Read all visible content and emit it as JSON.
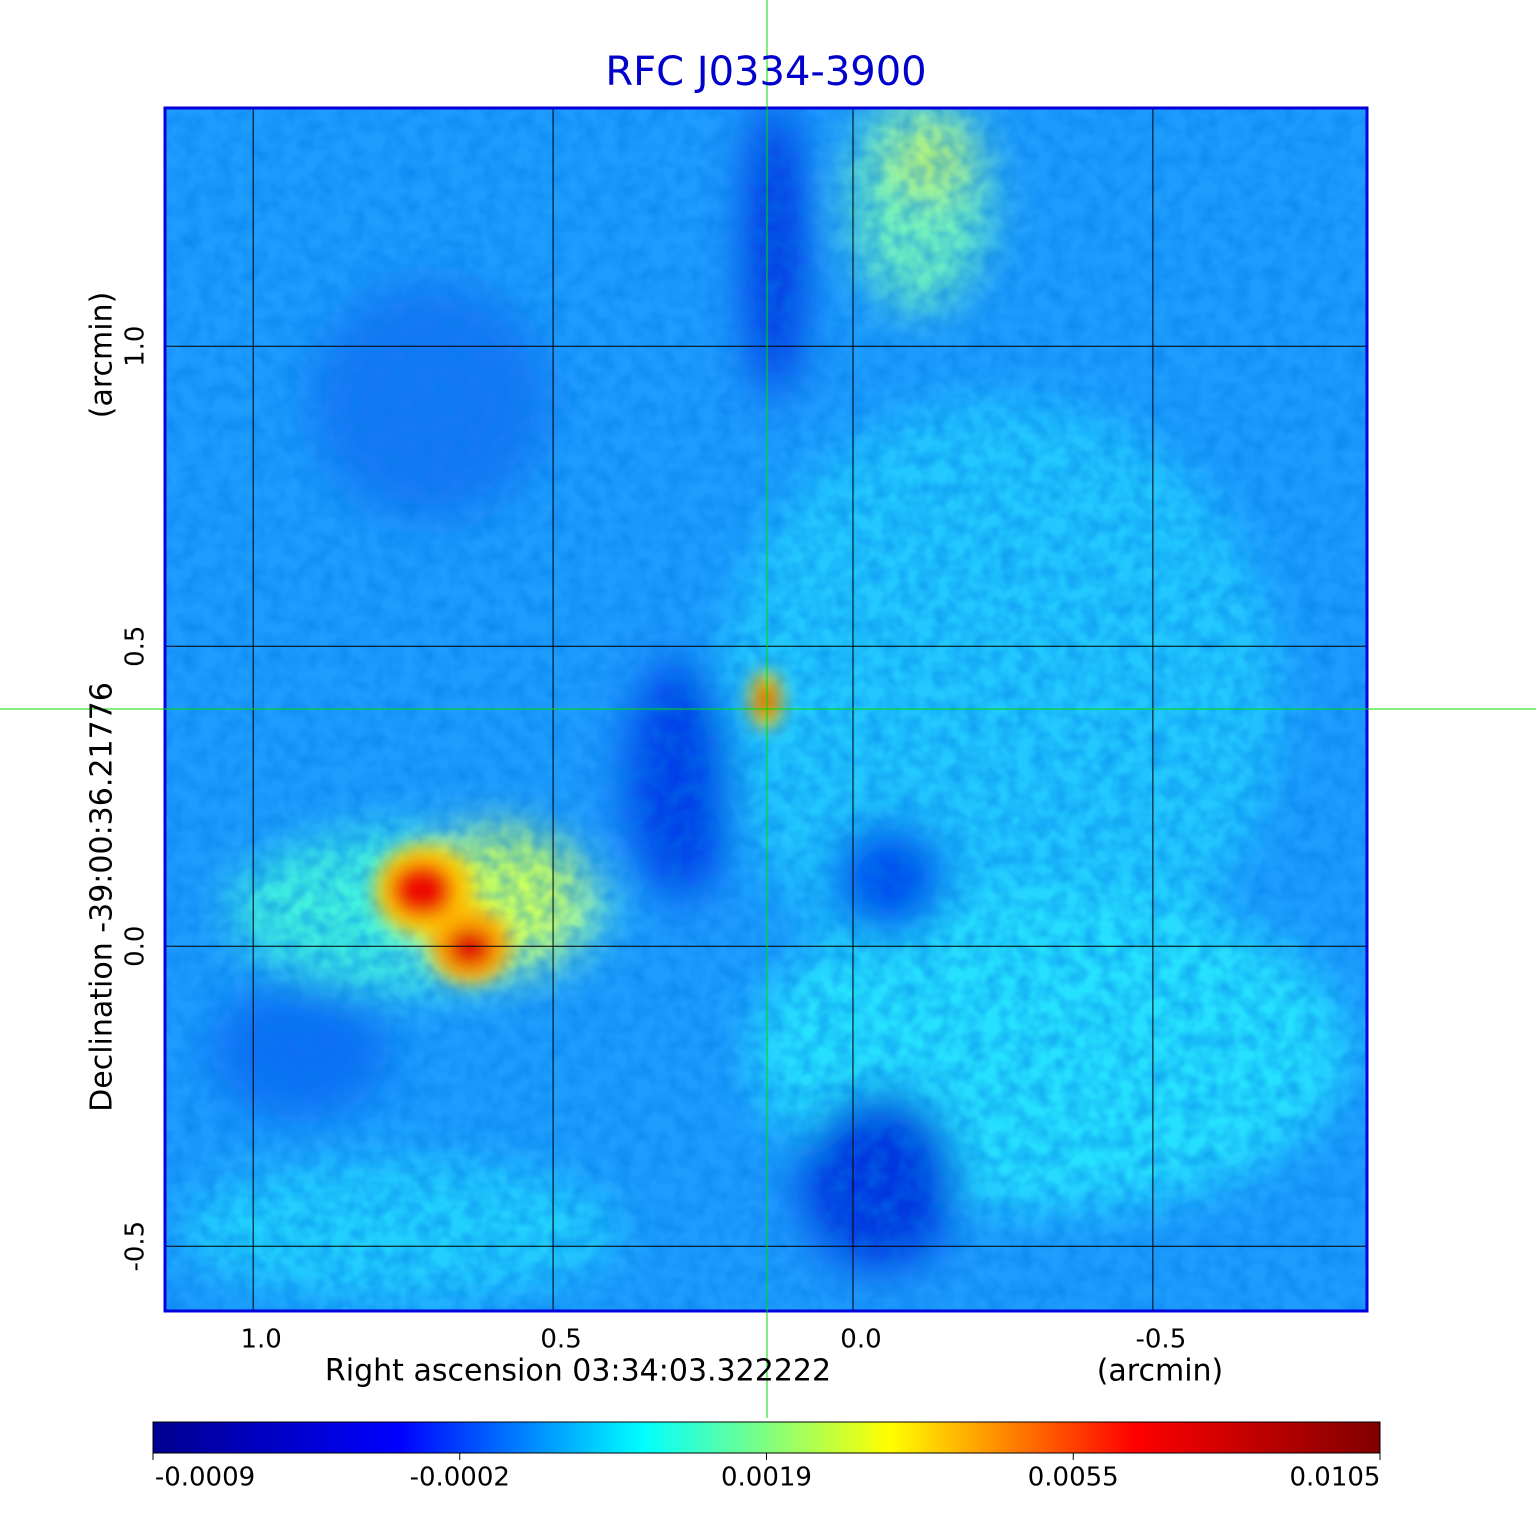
{
  "chart_data": {
    "type": "image",
    "title": "RFC J0334-3900",
    "x_label": "Right ascension  03:34:03.322222",
    "x_unit": "(arcmin)",
    "y_label": "Declination  -39:00:36.21776",
    "y_unit": "(arcmin)",
    "xlim": [
      1.147,
      -0.857
    ],
    "ylim": [
      -0.608,
      1.397
    ],
    "xticks": [
      {
        "value": 1,
        "label": "1.0"
      },
      0.5,
      {
        "value": 0,
        "label": "0.0"
      },
      -0.5
    ],
    "yticks": [
      -0.5,
      {
        "value": 0,
        "label": "0.0"
      },
      0.5,
      {
        "value": 1,
        "label": "1.0"
      }
    ],
    "grid": true,
    "colorbar": {
      "ticks": [
        -0.0009,
        -0.0002,
        0.0019,
        0.0055,
        0.0105
      ],
      "colors": [
        "#00008f",
        "#0000ff",
        "#00ffff",
        "#ffff00",
        "#ff0000",
        "#800000"
      ]
    }
  }
}
